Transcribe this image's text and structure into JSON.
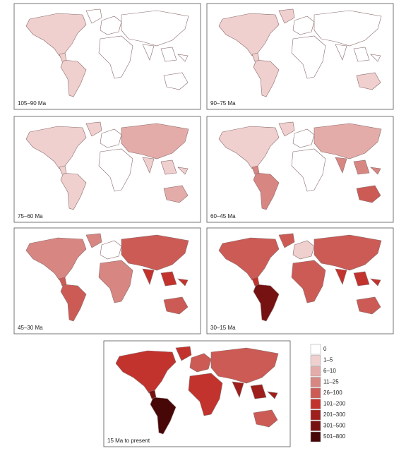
{
  "panels": [
    {
      "label": "105–90 Ma"
    },
    {
      "label": "90–75 Ma"
    },
    {
      "label": "75–60 Ma"
    },
    {
      "label": "60–45 Ma"
    },
    {
      "label": "45–30 Ma"
    },
    {
      "label": "30–15 Ma"
    },
    {
      "label": "15 Ma to present"
    }
  ],
  "legend": {
    "items": [
      {
        "label": "0",
        "color": "#ffffff"
      },
      {
        "label": "1–5",
        "color": "#f0d0cf"
      },
      {
        "label": "6–10",
        "color": "#e4aca9"
      },
      {
        "label": "11–25",
        "color": "#d88682"
      },
      {
        "label": "26–100",
        "color": "#cc5b55"
      },
      {
        "label": "101–200",
        "color": "#c2332d"
      },
      {
        "label": "201–300",
        "color": "#9e1f1b"
      },
      {
        "label": "301–500",
        "color": "#761212"
      },
      {
        "label": "501–800",
        "color": "#470707"
      }
    ]
  }
}
